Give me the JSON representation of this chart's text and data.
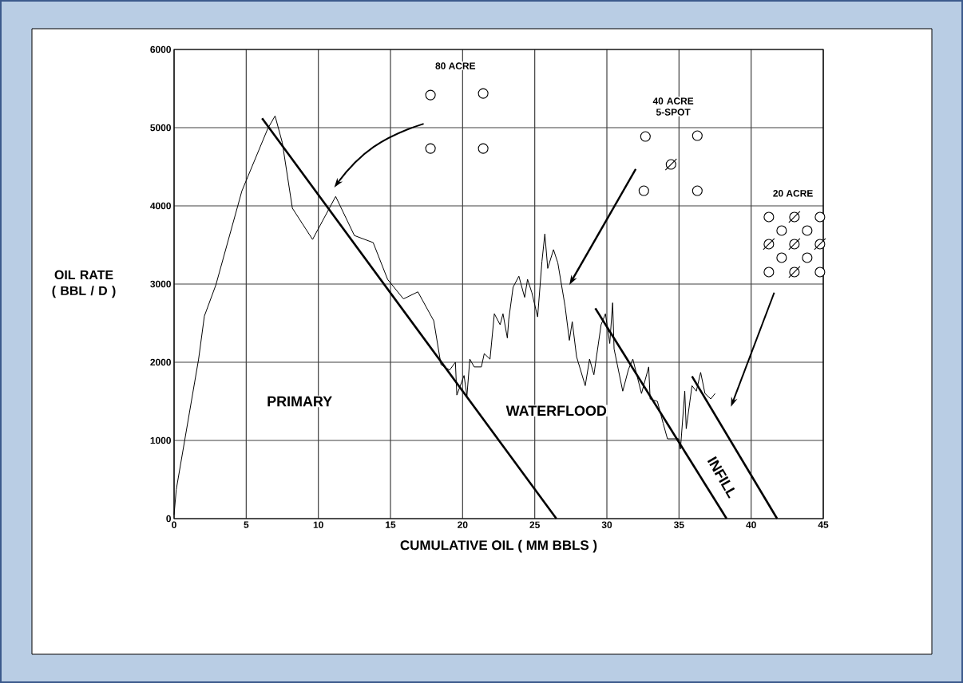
{
  "chart_data": {
    "type": "line",
    "xlabel": "CUMULATIVE OIL ( MM BBLS )",
    "ylabel": "OIL RATE ( BBL / D )",
    "xlim": [
      0,
      45
    ],
    "ylim": [
      0,
      6000
    ],
    "xticks": [
      0,
      5,
      10,
      15,
      20,
      25,
      30,
      35,
      40,
      45
    ],
    "yticks": [
      0,
      1000,
      2000,
      3000,
      4000,
      5000,
      6000
    ],
    "grid": true,
    "annotations": [
      "80 ACRE",
      "40 ACRE 5-SPOT",
      "20 ACRE",
      "PRIMARY",
      "WATERFLOOD",
      "INFILL"
    ],
    "series": [
      {
        "color": "#000000",
        "x": [
          0,
          0.15,
          1.7,
          2.1,
          2.9,
          4.7,
          6.5,
          7.0,
          7.5,
          8.2,
          9.6,
          11.2,
          12.5,
          13.8,
          14.8,
          15.9,
          16.9,
          18.0,
          18.5,
          19.1,
          19.5,
          19.6,
          20.1,
          20.3,
          20.5,
          20.8,
          21.3,
          21.5,
          21.9,
          22.2,
          22.6,
          22.8,
          23.1,
          23.2,
          23.5,
          23.9,
          24.3,
          24.5,
          24.8,
          25.2,
          25.5,
          25.7,
          25.9,
          26.3,
          26.6,
          27.1,
          27.4,
          27.6,
          27.9,
          28.5,
          28.8,
          29.1,
          29.6,
          29.9,
          30.2,
          30.4,
          30.5,
          31.1,
          31.5,
          31.8,
          32.4,
          32.9,
          33.0,
          33.5,
          33.9,
          34.2,
          35.0,
          35.1,
          35.4,
          35.5,
          35.9,
          36.2,
          36.5,
          36.8,
          37.2,
          37.5
        ],
        "values": [
          50,
          370,
          2040,
          2590,
          2990,
          4190,
          4990,
          5150,
          4810,
          3970,
          3570,
          4120,
          3620,
          3530,
          3060,
          2810,
          2900,
          2530,
          1970,
          1900,
          2000,
          1580,
          1830,
          1570,
          2040,
          1940,
          1940,
          2110,
          2040,
          2620,
          2480,
          2620,
          2310,
          2550,
          2960,
          3100,
          2830,
          3060,
          2890,
          2580,
          3290,
          3640,
          3200,
          3440,
          3270,
          2720,
          2280,
          2520,
          2070,
          1700,
          2040,
          1840,
          2480,
          2620,
          2240,
          2760,
          2170,
          1630,
          1910,
          2040,
          1600,
          1940,
          1530,
          1500,
          1220,
          1020,
          1020,
          890,
          1630,
          1150,
          1700,
          1630,
          1870,
          1600,
          1530,
          1600
        ]
      },
      {
        "color": "#000000",
        "x": [
          6.1,
          26.5
        ],
        "values": [
          5120,
          0
        ]
      },
      {
        "color": "#000000",
        "x": [
          29.2,
          38.3
        ],
        "values": [
          2690,
          0
        ]
      },
      {
        "color": "#000000",
        "x": [
          35.9,
          41.8
        ],
        "values": [
          1820,
          0
        ]
      }
    ]
  }
}
